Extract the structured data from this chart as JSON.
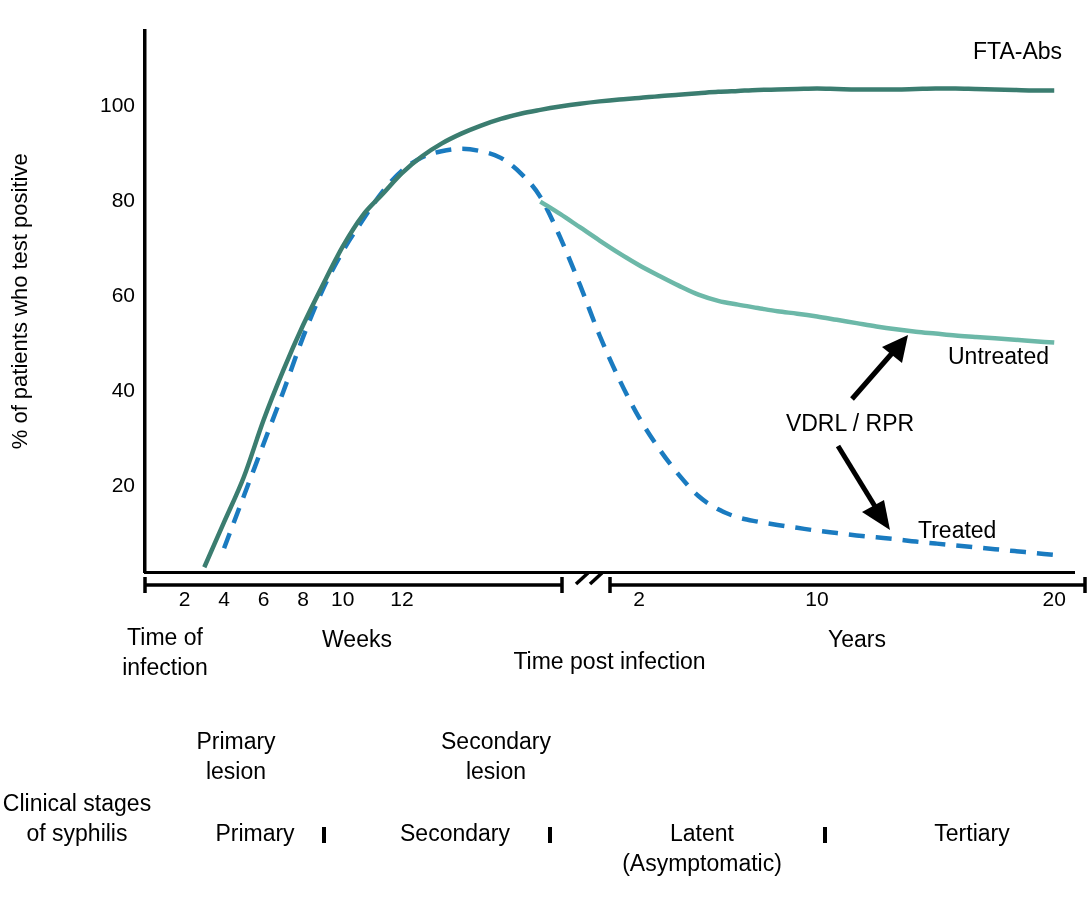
{
  "chart_data": {
    "type": "line",
    "ylabel": "% of patients who test positive",
    "xlabel": "Time post infection",
    "categories": [
      null,
      null,
      "2",
      null,
      "4",
      null,
      "6",
      null,
      "8",
      null,
      "10",
      null,
      null,
      "12",
      null,
      null,
      null,
      null,
      null,
      null,
      null,
      null,
      null,
      null,
      null,
      "2",
      null,
      null,
      null,
      null,
      null,
      null,
      null,
      null,
      "10",
      null,
      null,
      null,
      null,
      null,
      null,
      null,
      null,
      null,
      null,
      null,
      "20",
      null
    ],
    "ylim": [
      2,
      116
    ],
    "yticks": [
      20,
      40,
      60,
      80,
      100
    ],
    "grid": false,
    "legend": false,
    "series": [
      {
        "name": "FTA-Abs",
        "color": "#3b7d70",
        "line_style": "solid",
        "values": [
          null,
          null,
          null,
          3.0,
          12.5,
          22,
          34,
          44.5,
          54,
          62.5,
          70.5,
          77,
          81.5,
          86,
          89.5,
          92.2,
          94.3,
          96,
          97.4,
          98.5,
          99.3,
          100,
          100.6,
          101.1,
          101.5,
          101.8,
          102.2,
          102.5,
          102.8,
          103.1,
          103.3,
          103.5,
          103.6,
          103.7,
          103.8,
          103.7,
          103.6,
          103.6,
          103.6,
          103.7,
          103.8,
          103.8,
          103.7,
          103.6,
          103.5,
          103.4,
          103.4,
          null
        ]
      },
      {
        "name": "Untreated",
        "color": "#6cb8a8",
        "line_style": "solid",
        "values": [
          null,
          null,
          null,
          null,
          null,
          null,
          null,
          null,
          null,
          null,
          null,
          null,
          null,
          null,
          null,
          null,
          null,
          null,
          null,
          null,
          80,
          77.4,
          74.6,
          71.8,
          69.1,
          66.6,
          64.4,
          62.3,
          60.4,
          59.1,
          58.3,
          57.6,
          56.9,
          56.4,
          55.8,
          55.1,
          54.4,
          53.7,
          53.1,
          52.6,
          52.2,
          51.8,
          51.5,
          51.2,
          50.9,
          50.6,
          50.3,
          null
        ]
      },
      {
        "name": "Treated",
        "color": "#1a7bc0",
        "line_style": "dashed",
        "values": [
          null,
          null,
          null,
          null,
          7,
          18,
          29,
          40,
          51.5,
          61.5,
          69.5,
          76,
          82,
          86.5,
          89.3,
          90.6,
          91.1,
          90.6,
          89.2,
          86,
          81,
          72.5,
          62.5,
          51.8,
          42.5,
          34.5,
          28,
          22.5,
          18,
          15.2,
          13.5,
          12.6,
          11.9,
          11.3,
          10.7,
          10.2,
          9.7,
          9.3,
          8.9,
          8.4,
          8,
          7.6,
          7.2,
          6.8,
          6.4,
          6.0,
          5.6,
          null
        ]
      }
    ],
    "annotations": [
      "Time of infection",
      "Weeks",
      "Years",
      "VDRL / RPR",
      "Primary lesion",
      "Secondary lesion",
      "Clinical stages of syphilis",
      "Primary",
      "Secondary",
      "Latent (Asymptomatic)",
      "Tertiary"
    ]
  }
}
